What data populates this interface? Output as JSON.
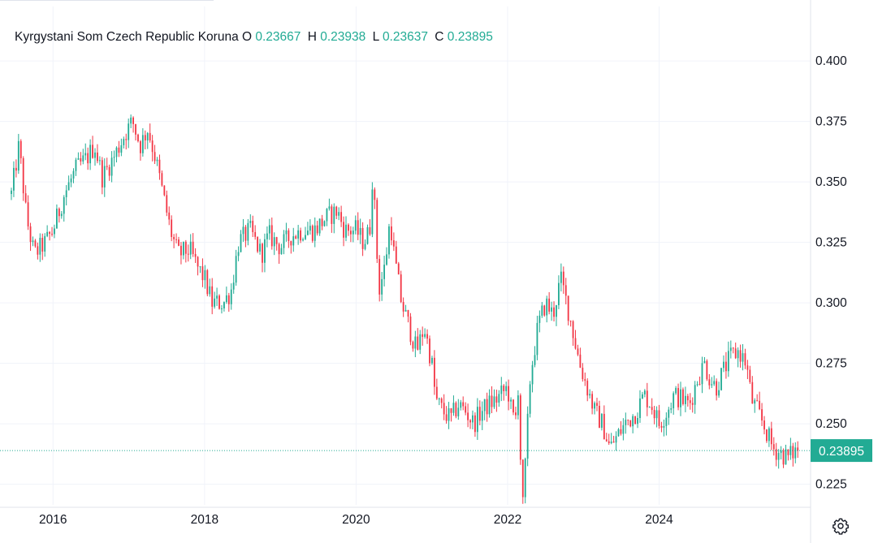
{
  "legend": {
    "symbol": "Kyrgystani Som Czech Republic Koruna",
    "o_label": "O",
    "o_value": "0.23667",
    "h_label": "H",
    "h_value": "0.23938",
    "l_label": "L",
    "l_value": "0.23637",
    "c_label": "C",
    "c_value": "0.23895"
  },
  "colors": {
    "up": "#22ab94",
    "down": "#f23645",
    "grid": "#f0f3fa",
    "axis_text": "#131722",
    "price_line": "#22ab94"
  },
  "icons": {
    "settings": "gear-icon"
  },
  "chart_data": {
    "type": "candlestick",
    "title": "Kyrgystani Som Czech Republic Koruna",
    "xlabel": "",
    "ylabel": "",
    "x_range": [
      2015.45,
      2025.86
    ],
    "ylim": [
      0.2165,
      0.4225
    ],
    "x_ticks": [
      {
        "label": "2016",
        "value": 2016
      },
      {
        "label": "2018",
        "value": 2018
      },
      {
        "label": "2020",
        "value": 2020
      },
      {
        "label": "2022",
        "value": 2022
      },
      {
        "label": "2024",
        "value": 2024
      }
    ],
    "y_ticks": [
      {
        "label": "0.400",
        "value": 0.4
      },
      {
        "label": "0.375",
        "value": 0.375
      },
      {
        "label": "0.350",
        "value": 0.35
      },
      {
        "label": "0.325",
        "value": 0.325
      },
      {
        "label": "0.300",
        "value": 0.3
      },
      {
        "label": "0.275",
        "value": 0.275
      },
      {
        "label": "0.250",
        "value": 0.25
      },
      {
        "label": "0.225",
        "value": 0.225
      }
    ],
    "last_price": {
      "label": "0.23895",
      "value": 0.23895
    },
    "grid": true,
    "legend_position": "top-left",
    "approx_close_path": [
      [
        2015.45,
        0.345
      ],
      [
        2015.55,
        0.365
      ],
      [
        2015.65,
        0.335
      ],
      [
        2015.75,
        0.32
      ],
      [
        2015.9,
        0.325
      ],
      [
        2016.0,
        0.33
      ],
      [
        2016.15,
        0.345
      ],
      [
        2016.3,
        0.355
      ],
      [
        2016.45,
        0.36
      ],
      [
        2016.55,
        0.365
      ],
      [
        2016.65,
        0.352
      ],
      [
        2016.8,
        0.36
      ],
      [
        2016.95,
        0.37
      ],
      [
        2017.05,
        0.375
      ],
      [
        2017.15,
        0.365
      ],
      [
        2017.25,
        0.372
      ],
      [
        2017.35,
        0.36
      ],
      [
        2017.45,
        0.345
      ],
      [
        2017.55,
        0.33
      ],
      [
        2017.65,
        0.32
      ],
      [
        2017.8,
        0.322
      ],
      [
        2017.9,
        0.315
      ],
      [
        2018.0,
        0.31
      ],
      [
        2018.1,
        0.3
      ],
      [
        2018.25,
        0.3
      ],
      [
        2018.35,
        0.305
      ],
      [
        2018.45,
        0.325
      ],
      [
        2018.6,
        0.33
      ],
      [
        2018.75,
        0.32
      ],
      [
        2018.85,
        0.328
      ],
      [
        2019.0,
        0.323
      ],
      [
        2019.15,
        0.328
      ],
      [
        2019.3,
        0.33
      ],
      [
        2019.45,
        0.33
      ],
      [
        2019.6,
        0.335
      ],
      [
        2019.75,
        0.338
      ],
      [
        2019.85,
        0.33
      ],
      [
        2020.0,
        0.33
      ],
      [
        2020.1,
        0.325
      ],
      [
        2020.18,
        0.33
      ],
      [
        2020.22,
        0.355
      ],
      [
        2020.26,
        0.33
      ],
      [
        2020.3,
        0.305
      ],
      [
        2020.38,
        0.315
      ],
      [
        2020.45,
        0.335
      ],
      [
        2020.5,
        0.32
      ],
      [
        2020.6,
        0.3
      ],
      [
        2020.7,
        0.29
      ],
      [
        2020.8,
        0.28
      ],
      [
        2020.9,
        0.29
      ],
      [
        2021.0,
        0.275
      ],
      [
        2021.05,
        0.26
      ],
      [
        2021.15,
        0.255
      ],
      [
        2021.25,
        0.252
      ],
      [
        2021.35,
        0.258
      ],
      [
        2021.45,
        0.255
      ],
      [
        2021.55,
        0.25
      ],
      [
        2021.65,
        0.255
      ],
      [
        2021.75,
        0.258
      ],
      [
        2021.85,
        0.26
      ],
      [
        2022.0,
        0.265
      ],
      [
        2022.05,
        0.255
      ],
      [
        2022.1,
        0.25
      ],
      [
        2022.15,
        0.27
      ],
      [
        2022.18,
        0.22
      ],
      [
        2022.2,
        0.215
      ],
      [
        2022.22,
        0.225
      ],
      [
        2022.3,
        0.27
      ],
      [
        2022.4,
        0.29
      ],
      [
        2022.5,
        0.3
      ],
      [
        2022.6,
        0.295
      ],
      [
        2022.7,
        0.31
      ],
      [
        2022.78,
        0.3
      ],
      [
        2022.85,
        0.29
      ],
      [
        2022.95,
        0.275
      ],
      [
        2023.05,
        0.265
      ],
      [
        2023.15,
        0.255
      ],
      [
        2023.25,
        0.25
      ],
      [
        2023.35,
        0.24
      ],
      [
        2023.45,
        0.245
      ],
      [
        2023.55,
        0.25
      ],
      [
        2023.7,
        0.255
      ],
      [
        2023.8,
        0.262
      ],
      [
        2023.9,
        0.258
      ],
      [
        2024.0,
        0.25
      ],
      [
        2024.1,
        0.255
      ],
      [
        2024.2,
        0.262
      ],
      [
        2024.3,
        0.26
      ],
      [
        2024.4,
        0.258
      ],
      [
        2024.5,
        0.268
      ],
      [
        2024.6,
        0.275
      ],
      [
        2024.65,
        0.27
      ],
      [
        2024.75,
        0.265
      ],
      [
        2024.85,
        0.272
      ],
      [
        2024.95,
        0.278
      ],
      [
        2025.05,
        0.28
      ],
      [
        2025.15,
        0.275
      ],
      [
        2025.22,
        0.26
      ],
      [
        2025.3,
        0.255
      ],
      [
        2025.4,
        0.248
      ],
      [
        2025.5,
        0.24
      ],
      [
        2025.6,
        0.238
      ],
      [
        2025.7,
        0.236
      ],
      [
        2025.78,
        0.2385
      ],
      [
        2025.83,
        0.23895
      ]
    ]
  }
}
